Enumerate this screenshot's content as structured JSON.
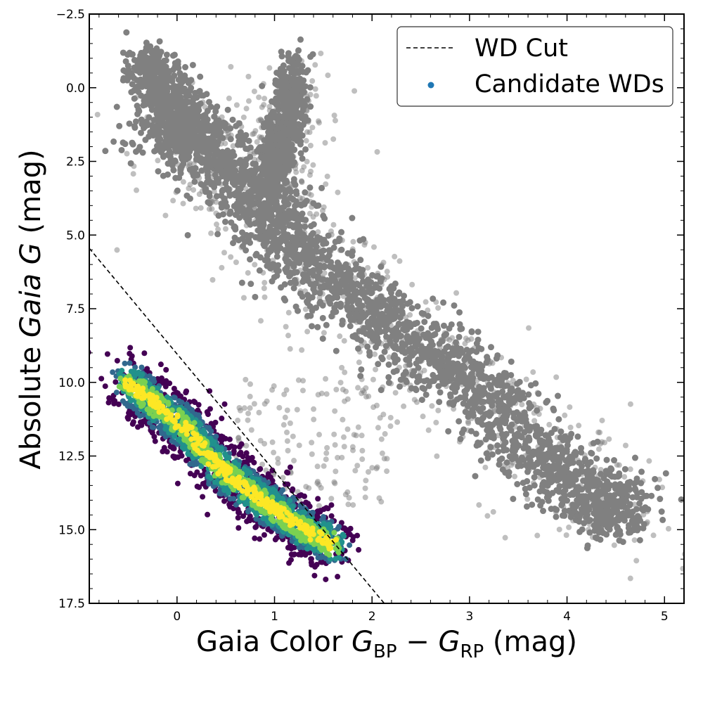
{
  "chart_data": {
    "type": "scatter",
    "xlabel": {
      "prefix": "Gaia Color ",
      "g1": "G",
      "sub1": "BP",
      "minus": " − ",
      "g2": "G",
      "sub2": "RP",
      "suffix": " (mag)"
    },
    "ylabel": {
      "prefix": "Absolute ",
      "italic": "Gaia G",
      "suffix": " (mag)"
    },
    "xlim": [
      -0.9,
      5.2
    ],
    "ylim": [
      17.5,
      -2.5
    ],
    "y_inverted": true,
    "x_ticks": [
      0,
      1,
      2,
      3,
      4,
      5
    ],
    "x_tick_labels": [
      "0",
      "1",
      "2",
      "3",
      "4",
      "5"
    ],
    "y_ticks": [
      -2.5,
      0,
      2.5,
      5,
      7.5,
      10,
      12.5,
      15,
      17.5
    ],
    "y_tick_labels": [
      "−2.5",
      "0.0",
      "2.5",
      "5.0",
      "7.5",
      "10.0",
      "12.5",
      "15.0",
      "17.5"
    ],
    "legend_position": "top-right",
    "legend": [
      {
        "label": "WD Cut",
        "marker": "dashed-line",
        "color": "#000000"
      },
      {
        "label": "Candidate WDs",
        "marker": "dot",
        "color": "#1f77b4"
      }
    ],
    "wd_cut_line": {
      "x": [
        -0.9,
        2.15
      ],
      "y": [
        5.45,
        17.6
      ],
      "style": "dashed",
      "color": "#000000"
    },
    "colors": {
      "field_stars": "#808080",
      "density_low": "#440154",
      "density_mid": "#21918c",
      "density_high": "#fde725"
    },
    "series": [
      {
        "name": "Field stars (main sequence)",
        "color": "#808080",
        "ridge": [
          {
            "x": -0.2,
            "y": 1.2
          },
          {
            "x": 0.2,
            "y": 2.0
          },
          {
            "x": 0.6,
            "y": 3.0
          },
          {
            "x": 0.9,
            "y": 4.0
          },
          {
            "x": 1.2,
            "y": 5.5
          },
          {
            "x": 1.6,
            "y": 6.8
          },
          {
            "x": 2.1,
            "y": 7.8
          },
          {
            "x": 2.6,
            "y": 9.0
          },
          {
            "x": 3.0,
            "y": 10.0
          },
          {
            "x": 3.4,
            "y": 11.3
          },
          {
            "x": 3.8,
            "y": 12.8
          },
          {
            "x": 4.3,
            "y": 14.0
          },
          {
            "x": 4.6,
            "y": 14.6
          }
        ],
        "branches": [
          {
            "name": "upper main sequence",
            "points": [
              {
                "x": -0.3,
                "y": -1.0
              },
              {
                "x": -0.1,
                "y": 0.5
              },
              {
                "x": 0.3,
                "y": 1.6
              }
            ]
          },
          {
            "name": "giant branch",
            "points": [
              {
                "x": 1.2,
                "y": -0.5
              },
              {
                "x": 1.15,
                "y": 0.8
              },
              {
                "x": 1.05,
                "y": 2.0
              },
              {
                "x": 0.95,
                "y": 3.2
              }
            ]
          }
        ]
      },
      {
        "name": "Candidate WDs",
        "color": "viridis",
        "ridge": [
          {
            "x": -0.5,
            "y": 10.0
          },
          {
            "x": -0.2,
            "y": 10.8
          },
          {
            "x": 0.1,
            "y": 11.6
          },
          {
            "x": 0.4,
            "y": 12.8
          },
          {
            "x": 0.7,
            "y": 13.6
          },
          {
            "x": 1.0,
            "y": 14.3
          },
          {
            "x": 1.3,
            "y": 15.0
          },
          {
            "x": 1.6,
            "y": 15.5
          }
        ]
      }
    ]
  }
}
